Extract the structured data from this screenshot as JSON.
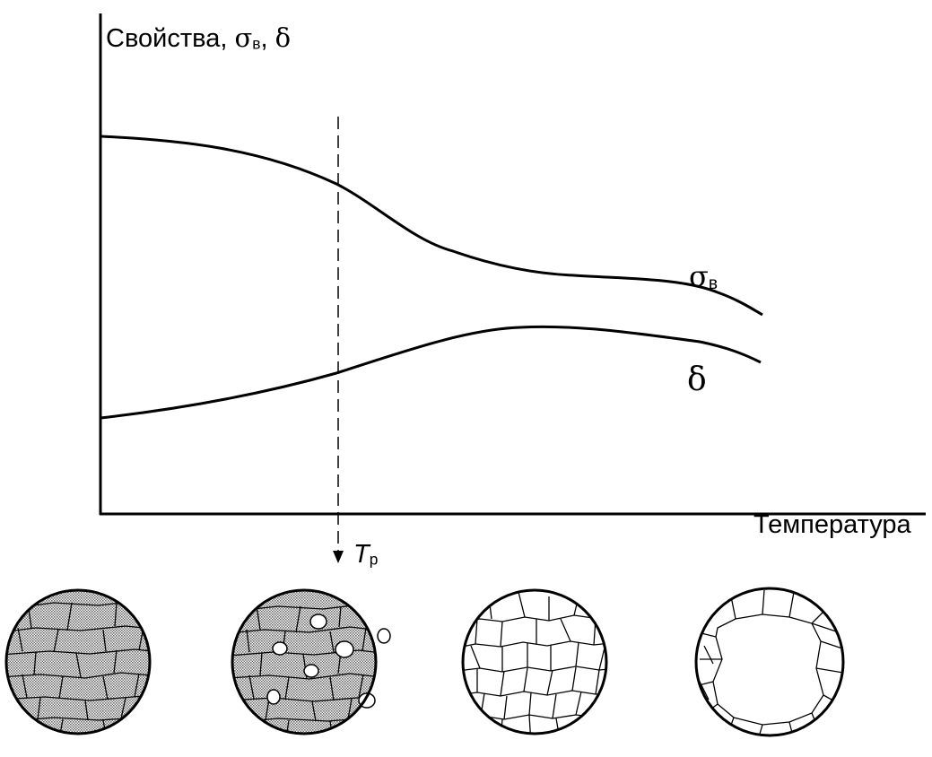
{
  "diagram": {
    "y_axis_title": "Свойства,",
    "y_axis_symbol_sigma": "σ",
    "y_axis_symbol_sigma_sub": "в",
    "y_axis_separator": ",",
    "y_axis_symbol_delta": "δ",
    "x_axis_title": "Температура",
    "curve_sigma_symbol": "σ",
    "curve_sigma_sub": "в",
    "curve_delta_label": "δ",
    "recrystallization_temp_symbol": "T",
    "recrystallization_temp_sub": "р",
    "microstructures": [
      {
        "state": "deformed",
        "fill": "#8a8a8a"
      },
      {
        "state": "recrystallization-start",
        "fill": "#8a8a8a"
      },
      {
        "state": "recrystallized",
        "fill": "#ffffff"
      },
      {
        "state": "grain-growth",
        "fill": "#ffffff"
      }
    ],
    "line_color": "#000000",
    "hatch_color": "#8a8a8a"
  }
}
